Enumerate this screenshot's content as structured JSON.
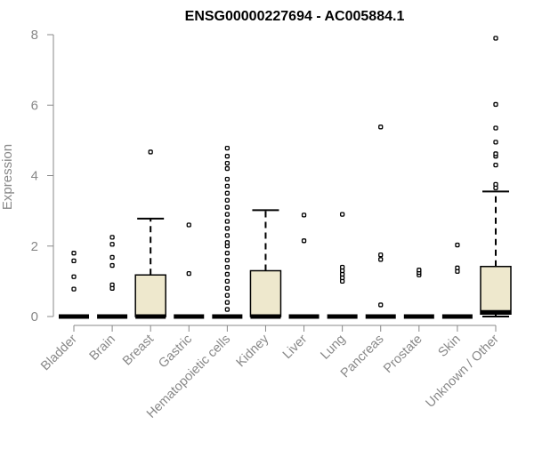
{
  "chart_data": {
    "type": "box",
    "title": "ENSG00000227694 - AC005884.1",
    "xlabel": "",
    "ylabel": "Expression",
    "ylim": [
      0,
      8
    ],
    "yticks": [
      0,
      2,
      4,
      6,
      8
    ],
    "grid": false,
    "box_color": "#EEE8CD",
    "line_color": "#000000",
    "axis_color": "#888888",
    "categories": [
      "Bladder",
      "Brain",
      "Breast",
      "Gastric",
      "Hematopoietic cells",
      "Kidney",
      "Liver",
      "Lung",
      "Pancreas",
      "Prostate",
      "Skin",
      "Unknown / Other"
    ],
    "boxes": [
      {
        "category": "Bladder",
        "whisker_low": 0,
        "q1": 0,
        "median": 0,
        "q3": 0,
        "whisker_high": 0,
        "outliers": [
          0.78,
          1.13,
          1.58,
          1.8
        ]
      },
      {
        "category": "Brain",
        "whisker_low": 0,
        "q1": 0,
        "median": 0,
        "q3": 0,
        "whisker_high": 0,
        "outliers": [
          0.8,
          0.9,
          1.45,
          1.68,
          2.05,
          2.25
        ]
      },
      {
        "category": "Breast",
        "whisker_low": 0,
        "q1": 0,
        "median": 0,
        "q3": 1.18,
        "whisker_high": 2.78,
        "outliers": [
          4.67
        ]
      },
      {
        "category": "Gastric",
        "whisker_low": 0,
        "q1": 0,
        "median": 0,
        "q3": 0,
        "whisker_high": 0,
        "outliers": [
          1.22,
          2.6
        ]
      },
      {
        "category": "Hematopoietic cells",
        "whisker_low": 0,
        "q1": 0,
        "median": 0,
        "q3": 0,
        "whisker_high": 0,
        "outliers": [
          0.2,
          0.4,
          0.6,
          0.8,
          1.0,
          1.2,
          1.4,
          1.6,
          1.8,
          2.0,
          2.1,
          2.3,
          2.5,
          2.7,
          2.9,
          3.1,
          3.3,
          3.5,
          3.7,
          3.9,
          4.2,
          4.35,
          4.55,
          4.78
        ]
      },
      {
        "category": "Kidney",
        "whisker_low": 0,
        "q1": 0,
        "median": 0,
        "q3": 1.3,
        "whisker_high": 3.02,
        "outliers": []
      },
      {
        "category": "Liver",
        "whisker_low": 0,
        "q1": 0,
        "median": 0,
        "q3": 0,
        "whisker_high": 0,
        "outliers": [
          2.15,
          2.88
        ]
      },
      {
        "category": "Lung",
        "whisker_low": 0,
        "q1": 0,
        "median": 0,
        "q3": 0,
        "whisker_high": 0,
        "outliers": [
          1.0,
          1.1,
          1.2,
          1.3,
          1.4,
          2.9
        ]
      },
      {
        "category": "Pancreas",
        "whisker_low": 0,
        "q1": 0,
        "median": 0,
        "q3": 0,
        "whisker_high": 0,
        "outliers": [
          0.33,
          1.62,
          1.75,
          5.38
        ]
      },
      {
        "category": "Prostate",
        "whisker_low": 0,
        "q1": 0,
        "median": 0,
        "q3": 0,
        "whisker_high": 0,
        "outliers": [
          1.18,
          1.25,
          1.32
        ]
      },
      {
        "category": "Skin",
        "whisker_low": 0,
        "q1": 0,
        "median": 0,
        "q3": 0,
        "whisker_high": 0,
        "outliers": [
          1.28,
          1.38,
          2.03
        ]
      },
      {
        "category": "Unknown / Other",
        "whisker_low": 0,
        "q1": 0.07,
        "median": 0.12,
        "q3": 1.42,
        "whisker_high": 3.55,
        "outliers": [
          3.65,
          3.75,
          4.3,
          4.55,
          4.62,
          4.95,
          5.35,
          6.02,
          7.9
        ]
      }
    ]
  }
}
